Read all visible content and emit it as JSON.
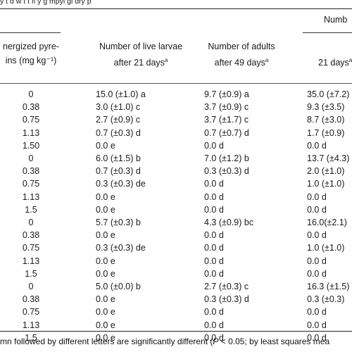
{
  "caption": "y t d w t t fl y g mpyi gi dry p",
  "headers": {
    "col0": [
      "nergized pyre-",
      "ins (mg kg⁻¹)"
    ],
    "col1": [
      "Number of live larvae",
      "after 21 days",
      "a"
    ],
    "col2": [
      "Number of adults",
      "after 49 days",
      "a"
    ],
    "group": "Numb",
    "col3": [
      "21 days",
      "a"
    ]
  },
  "rows": [
    {
      "dose": "0",
      "larvae": "15.0 (±1.0) a",
      "adults": "9.7 (±0.9) a",
      "d21": "35.0 (±7.2)"
    },
    {
      "dose": "0.38",
      "larvae": "3.0 (±1.0) c",
      "adults": "3.7 (±0.9) c",
      "d21": "9.3 (±3.5)"
    },
    {
      "dose": "0.75",
      "larvae": "2.7 (±0.9) c",
      "adults": "3.7 (±1.7) c",
      "d21": "8.7 (±3.0)"
    },
    {
      "dose": "1.13",
      "larvae": "0.7 (±0.3) d",
      "adults": "0.7 (±0.7) d",
      "d21": "1.7 (±0.9)"
    },
    {
      "dose": "1.50",
      "larvae": "0.0 e",
      "adults": "0.0 d",
      "d21": "0.0 d"
    },
    {
      "dose": "0",
      "larvae": "6.0 (±1.5) b",
      "adults": "7.0 (±1.2) b",
      "d21": "13.7 (±4.3)"
    },
    {
      "dose": "0.38",
      "larvae": "0.7 (±0.3) d",
      "adults": "0.3 (±0.3) d",
      "d21": "2.0 (±1.0)"
    },
    {
      "dose": "0.75",
      "larvae": "0.3 (±0.3) de",
      "adults": "0.0 d",
      "d21": "1.0 (±1.0)"
    },
    {
      "dose": "1.13",
      "larvae": "0.0 e",
      "adults": "0.0 d",
      "d21": "0.0 d"
    },
    {
      "dose": "1.5",
      "larvae": "0.0 e",
      "adults": "0.0 d",
      "d21": "0.0 d"
    },
    {
      "dose": "0",
      "larvae": "5.7 (±0.3) b",
      "adults": "4.3 (±0.9) bc",
      "d21": "16.0(±2.1)"
    },
    {
      "dose": "0.38",
      "larvae": "0.0 e",
      "adults": "0.0 d",
      "d21": "0.0 d"
    },
    {
      "dose": "0.75",
      "larvae": "0.3 (±0.3) de",
      "adults": "0.0 d",
      "d21": "1.0 (±1.0)"
    },
    {
      "dose": "1.13",
      "larvae": "0.0 e",
      "adults": "0.0 d",
      "d21": "0.0 d"
    },
    {
      "dose": "1.5",
      "larvae": "0.0 e",
      "adults": "0.0 d",
      "d21": "0.0 d"
    },
    {
      "dose": "0",
      "larvae": "5.0 (±0.0) b",
      "adults": "2.7 (±0.3) c",
      "d21": "16.3 (±1.5)"
    },
    {
      "dose": "0.38",
      "larvae": "0.0 e",
      "adults": "0.3 (±0.3) d",
      "d21": "0.3 (±0.3)"
    },
    {
      "dose": "0.75",
      "larvae": "0.0 e",
      "adults": "0.0 d",
      "d21": "0.0 d"
    },
    {
      "dose": "1.13",
      "larvae": "0.0 e",
      "adults": "0.0 d",
      "d21": "0.0 d"
    },
    {
      "dose": "1.5",
      "larvae": "0.0 e",
      "adults": "0.0 d",
      "d21": "0.0 d"
    }
  ],
  "footnote": {
    "before": "mn followed by different letters are significantly different (",
    "p_symbol": "P",
    "after": " < 0.05; by least squares mea"
  }
}
